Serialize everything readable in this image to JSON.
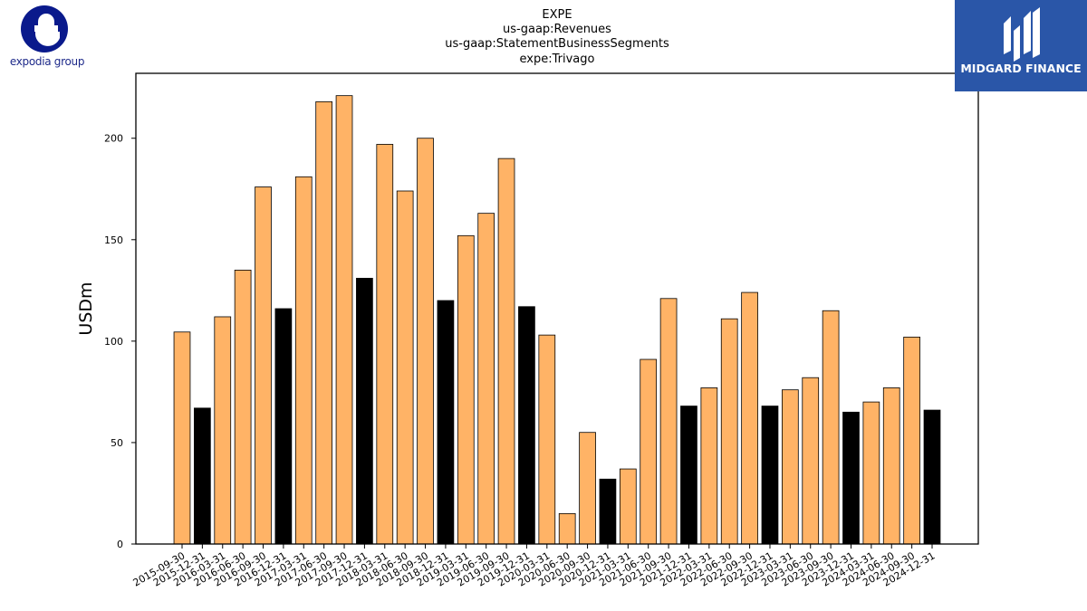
{
  "logos": {
    "expedia": {
      "text": "expodia group",
      "color": "#0a1a8c"
    },
    "midgard": {
      "text": "MIDGARD FINANCE",
      "color": "#2a56a8"
    }
  },
  "chart_data": {
    "type": "bar",
    "title_lines": [
      "EXPE",
      "us-gaap:Revenues",
      "us-gaap:StatementBusinessSegments",
      "expe:Trivago"
    ],
    "xlabel": "",
    "ylabel": "USDm",
    "ylim": [
      0,
      232
    ],
    "yticks": [
      0,
      50,
      100,
      150,
      200
    ],
    "grid": false,
    "colors": {
      "regular": "#ffb366",
      "year_end": "#000000"
    },
    "categories": [
      "2015-09-30",
      "2015-12-31",
      "2016-03-31",
      "2016-06-30",
      "2016-09-30",
      "2016-12-31",
      "2017-03-31",
      "2017-06-30",
      "2017-09-30",
      "2017-12-31",
      "2018-03-31",
      "2018-06-30",
      "2018-09-30",
      "2018-12-31",
      "2019-03-31",
      "2019-06-30",
      "2019-09-30",
      "2019-12-31",
      "2020-03-31",
      "2020-06-30",
      "2020-09-30",
      "2020-12-31",
      "2021-03-31",
      "2021-06-30",
      "2021-09-30",
      "2021-12-31",
      "2022-03-31",
      "2022-06-30",
      "2022-09-30",
      "2022-12-31",
      "2023-03-31",
      "2023-06-30",
      "2023-09-30",
      "2023-12-31",
      "2024-03-31",
      "2024-06-30",
      "2024-09-30",
      "2024-12-31"
    ],
    "values": [
      104.5,
      67,
      112,
      135,
      176,
      116,
      181,
      218,
      221,
      131,
      197,
      174,
      200,
      120,
      152,
      163,
      190,
      117,
      103,
      15,
      55,
      32,
      37,
      91,
      121,
      68,
      77,
      111,
      124,
      68,
      76,
      82,
      115,
      65,
      70,
      77,
      102,
      66
    ]
  }
}
